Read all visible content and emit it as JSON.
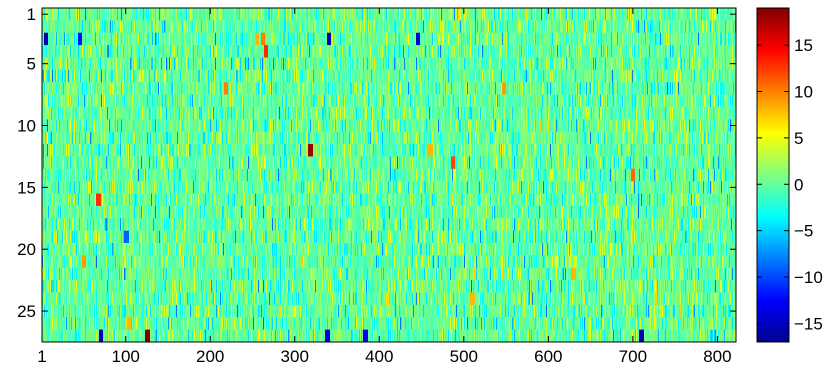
{
  "chart_data": {
    "type": "heatmap",
    "title": "",
    "xlabel": "",
    "ylabel": "",
    "n_rows": 27,
    "n_cols": 822,
    "xlim": [
      1,
      822
    ],
    "ylim": [
      1,
      27
    ],
    "x_ticks": [
      1,
      100,
      200,
      300,
      400,
      500,
      600,
      700,
      800
    ],
    "y_ticks": [
      1,
      5,
      10,
      15,
      20,
      25
    ],
    "colorbar": {
      "colormap": "jet",
      "range": [
        -17,
        19
      ],
      "ticks": [
        15,
        10,
        5,
        0,
        -5,
        -10,
        -15
      ],
      "tick_labels": [
        "15",
        "10",
        "5",
        "0",
        "−5",
        "−10",
        "−15"
      ]
    },
    "background_value": 0,
    "cell_value_estimates": [
      {
        "row": 3,
        "col": 5,
        "value": -15
      },
      {
        "row": 3,
        "col": 45,
        "value": -12
      },
      {
        "row": 3,
        "col": 255,
        "value": 8
      },
      {
        "row": 3,
        "col": 262,
        "value": 10
      },
      {
        "row": 3,
        "col": 340,
        "value": -15
      },
      {
        "row": 3,
        "col": 445,
        "value": -14
      },
      {
        "row": 4,
        "col": 265,
        "value": 13
      },
      {
        "row": 7,
        "col": 218,
        "value": 10
      },
      {
        "row": 7,
        "col": 547,
        "value": 9
      },
      {
        "row": 12,
        "col": 318,
        "value": 18
      },
      {
        "row": 12,
        "col": 460,
        "value": 8
      },
      {
        "row": 13,
        "col": 487,
        "value": 12
      },
      {
        "row": 14,
        "col": 700,
        "value": 11
      },
      {
        "row": 16,
        "col": 67,
        "value": 13
      },
      {
        "row": 19,
        "col": 100,
        "value": -9
      },
      {
        "row": 21,
        "col": 50,
        "value": 9
      },
      {
        "row": 22,
        "col": 630,
        "value": 8
      },
      {
        "row": 24,
        "col": 510,
        "value": 8
      },
      {
        "row": 26,
        "col": 103,
        "value": 8
      },
      {
        "row": 27,
        "col": 70,
        "value": -15
      },
      {
        "row": 27,
        "col": 125,
        "value": 19
      },
      {
        "row": 27,
        "col": 338,
        "value": -14
      },
      {
        "row": 27,
        "col": 383,
        "value": -13
      },
      {
        "row": 27,
        "col": 710,
        "value": -15
      }
    ]
  }
}
